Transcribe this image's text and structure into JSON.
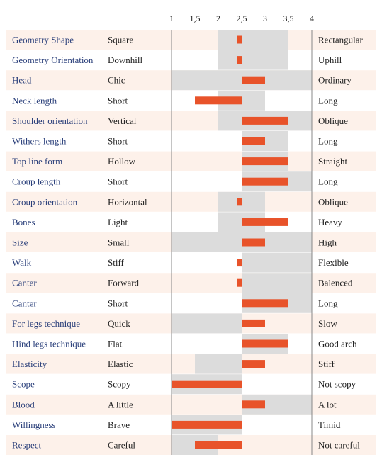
{
  "chart_data": {
    "type": "bar",
    "title": "",
    "xlabel": "",
    "ylabel": "",
    "xlim": [
      1,
      4
    ],
    "ticks": [
      "1",
      "1,5",
      "2",
      "2,5",
      "3",
      "3,5",
      "4"
    ],
    "tick_values": [
      1,
      1.5,
      2,
      2.5,
      3,
      3.5,
      4
    ],
    "center": 2.5,
    "series": [
      {
        "values": [
          2.4,
          2.4,
          3.0,
          1.5,
          3.5,
          3.0,
          3.5,
          3.5,
          2.4,
          3.5,
          3.0,
          2.4,
          2.4,
          3.5,
          3.0,
          3.5,
          3.0,
          1.0,
          3.0,
          1.0,
          1.5
        ]
      }
    ],
    "rows": [
      {
        "trait": "Geometry Shape",
        "low": "Square",
        "high": "Rectangular",
        "value": 2.4,
        "range": [
          2.0,
          3.5
        ]
      },
      {
        "trait": "Geometry Orientation",
        "low": "Downhill",
        "high": "Uphill",
        "value": 2.4,
        "range": [
          2.0,
          3.5
        ]
      },
      {
        "trait": "Head",
        "low": "Chic",
        "high": "Ordinary",
        "value": 3.0,
        "range": [
          1.0,
          4.0
        ]
      },
      {
        "trait": "Neck length",
        "low": "Short",
        "high": "Long",
        "value": 1.5,
        "range": [
          2.0,
          3.0
        ]
      },
      {
        "trait": "Shoulder orientation",
        "low": "Vertical",
        "high": "Oblique",
        "value": 3.5,
        "range": [
          2.0,
          4.0
        ]
      },
      {
        "trait": "Withers length",
        "low": "Short",
        "high": "Long",
        "value": 3.0,
        "range": [
          2.5,
          3.5
        ]
      },
      {
        "trait": "Top line form",
        "low": "Hollow",
        "high": "Straight",
        "value": 3.5,
        "range": [
          2.5,
          3.5
        ]
      },
      {
        "trait": "Croup length",
        "low": "Short",
        "high": "Long",
        "value": 3.5,
        "range": [
          2.5,
          4.0
        ]
      },
      {
        "trait": "Croup orientation",
        "low": "Horizontal",
        "high": "Oblique",
        "value": 2.4,
        "range": [
          2.0,
          3.0
        ]
      },
      {
        "trait": "Bones",
        "low": "Light",
        "high": "Heavy",
        "value": 3.5,
        "range": [
          2.0,
          3.0
        ]
      },
      {
        "trait": "Size",
        "low": "Small",
        "high": "High",
        "value": 3.0,
        "range": [
          1.0,
          4.0
        ]
      },
      {
        "trait": "Walk",
        "low": "Stiff",
        "high": "Flexible",
        "value": 2.4,
        "range": [
          2.5,
          4.0
        ]
      },
      {
        "trait": "Canter",
        "low": "Forward",
        "high": "Balenced",
        "value": 2.4,
        "range": [
          2.5,
          4.0
        ]
      },
      {
        "trait": "Canter",
        "low": "Short",
        "high": "Long",
        "value": 3.5,
        "range": [
          2.5,
          4.0
        ]
      },
      {
        "trait": "For legs technique",
        "low": "Quick",
        "high": "Slow",
        "value": 3.0,
        "range": [
          1.0,
          2.5
        ]
      },
      {
        "trait": "Hind legs technique",
        "low": "Flat",
        "high": "Good arch",
        "value": 3.5,
        "range": [
          2.5,
          3.5
        ]
      },
      {
        "trait": "Elasticity",
        "low": "Elastic",
        "high": "Stiff",
        "value": 3.0,
        "range": [
          1.5,
          2.5
        ]
      },
      {
        "trait": "Scope",
        "low": "Scopy",
        "high": "Not scopy",
        "value": 1.0,
        "range": [
          1.0,
          2.5
        ]
      },
      {
        "trait": "Blood",
        "low": "A little",
        "high": "A lot",
        "value": 3.0,
        "range": [
          2.5,
          4.0
        ]
      },
      {
        "trait": "Willingness",
        "low": "Brave",
        "high": "Timid",
        "value": 1.0,
        "range": [
          1.0,
          2.5
        ]
      },
      {
        "trait": "Respect",
        "low": "Careful",
        "high": "Not careful",
        "value": 1.5,
        "range": [
          1.0,
          2.0
        ]
      }
    ],
    "colors": {
      "bar": "#e8532a",
      "range": "#dcdcdc",
      "stripe": "#fdf1ea",
      "trait_text": "#2a3f7a",
      "axis": "#888888"
    },
    "grid": false,
    "legend": "none"
  }
}
